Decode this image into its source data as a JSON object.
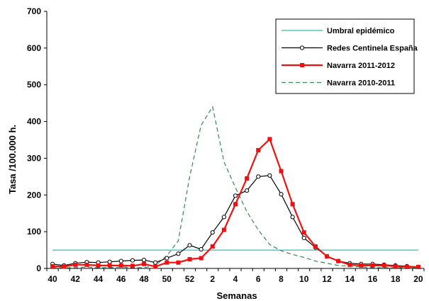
{
  "chart_data": {
    "type": "line",
    "xlabel": "Semanas",
    "ylabel": "Tasa /100.000 h.",
    "ylim": [
      0,
      700
    ],
    "yticks": [
      0,
      100,
      200,
      300,
      400,
      500,
      600,
      700
    ],
    "weeks": [
      "40",
      "41",
      "42",
      "43",
      "44",
      "45",
      "46",
      "47",
      "48",
      "49",
      "50",
      "51",
      "52",
      "1",
      "2",
      "3",
      "4",
      "5",
      "6",
      "7",
      "8",
      "9",
      "10",
      "11",
      "12",
      "13",
      "14",
      "15",
      "16",
      "17",
      "18",
      "19",
      "20"
    ],
    "x_tick_labels": [
      "40",
      "42",
      "44",
      "46",
      "48",
      "50",
      "52",
      "2",
      "4",
      "6",
      "8",
      "10",
      "12",
      "14",
      "16",
      "18",
      "20"
    ],
    "grid": false,
    "legend_position": "top-right",
    "series": [
      {
        "name": "Umbral epidémico",
        "color": "#33bbbb",
        "style": "solid-thin",
        "values": [
          50,
          50,
          50,
          50,
          50,
          50,
          50,
          50,
          50,
          50,
          50,
          50,
          50,
          50,
          50,
          50,
          50,
          50,
          50,
          50,
          50,
          50,
          50,
          50,
          50,
          50,
          50,
          50,
          50,
          50,
          50,
          50,
          50
        ]
      },
      {
        "name": "Redes Centinela España",
        "color": "#000000",
        "style": "line-open-circle",
        "values": [
          12,
          8,
          14,
          17,
          16,
          18,
          20,
          22,
          23,
          16,
          28,
          40,
          63,
          52,
          98,
          140,
          198,
          212,
          250,
          253,
          202,
          140,
          83,
          57,
          33,
          20,
          14,
          12,
          12,
          10,
          8,
          6,
          4
        ]
      },
      {
        "name": "Navarra 2011-2012",
        "color": "#ee1111",
        "style": "thick-square",
        "values": [
          6,
          5,
          10,
          10,
          8,
          8,
          8,
          7,
          12,
          5,
          16,
          16,
          25,
          28,
          60,
          105,
          175,
          245,
          322,
          352,
          265,
          175,
          98,
          60,
          33,
          20,
          10,
          8,
          8,
          8,
          6,
          4,
          4
        ]
      },
      {
        "name": "Navarra 2010-2011",
        "color": "#338855",
        "style": "dashed",
        "values": [
          2,
          2,
          2,
          4,
          2,
          2,
          4,
          2,
          2,
          8,
          35,
          75,
          250,
          390,
          440,
          290,
          220,
          155,
          105,
          65,
          48,
          38,
          30,
          20,
          14,
          8,
          6,
          4,
          2,
          2,
          2,
          2,
          2
        ]
      }
    ]
  }
}
